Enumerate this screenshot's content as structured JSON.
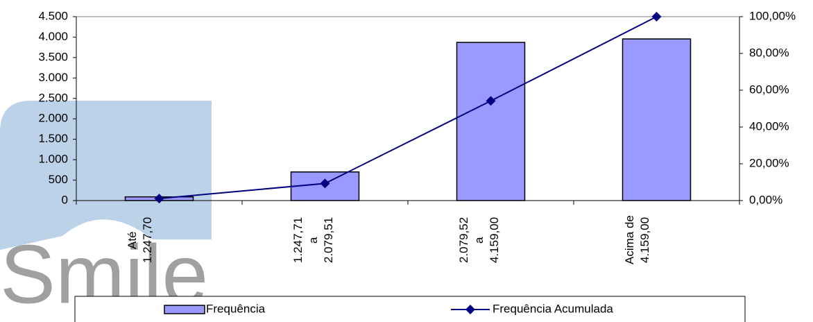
{
  "watermark": "Smile",
  "chart_data": {
    "type": "combo",
    "categories": [
      "Até\n1.247,70",
      "1.247,71\na\n2.079,51",
      "2.079,52\na\n4.159,00",
      "Acima de\n4.159,00"
    ],
    "series": [
      {
        "name": "Frequência",
        "type": "bar",
        "color": "#9999ff",
        "values": [
          90,
          700,
          3870,
          3955
        ]
      },
      {
        "name": "Frequência Acumulada",
        "type": "line",
        "color": "#000080",
        "axis": "y2",
        "values": [
          1.1,
          9.3,
          54.2,
          100
        ]
      }
    ],
    "ylim": [
      0,
      4500
    ],
    "yticks": [
      0,
      500,
      {
        "value": 1000,
        "label": "1.000"
      },
      {
        "value": 1500,
        "label": "1.500"
      },
      {
        "value": 2000,
        "label": "2.000"
      },
      {
        "value": 2500,
        "label": "2.500"
      },
      {
        "value": 3000,
        "label": "3.000"
      },
      {
        "value": 3500,
        "label": "3.500"
      },
      {
        "value": 4000,
        "label": "4.000"
      },
      {
        "value": 4500,
        "label": "4.500"
      }
    ],
    "y2lim": [
      0,
      100
    ],
    "y2ticks": [
      {
        "value": 0,
        "label": "0,00%"
      },
      {
        "value": 20,
        "label": "20,00%"
      },
      {
        "value": 40,
        "label": "40,00%"
      },
      {
        "value": 60,
        "label": "60,00%"
      },
      {
        "value": 80,
        "label": "80,00%"
      },
      {
        "value": 100,
        "label": "100,00%"
      }
    ],
    "legend": "bottom"
  }
}
